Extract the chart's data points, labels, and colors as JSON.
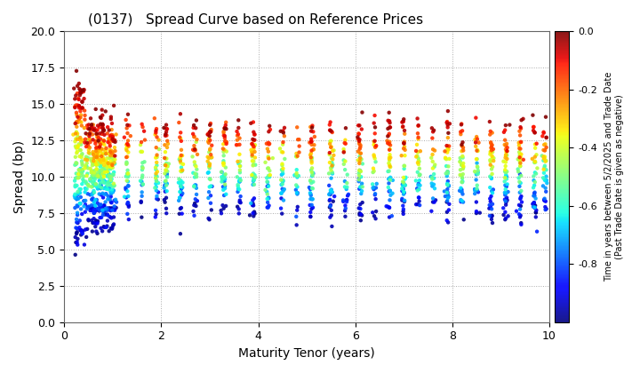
{
  "title": "(0137)   Spread Curve based on Reference Prices",
  "xlabel": "Maturity Tenor (years)",
  "ylabel": "Spread (bp)",
  "colorbar_label": "Time in years between 5/2/2025 and Trade Date\n(Past Trade Date is given as negative)",
  "xlim": [
    0,
    10
  ],
  "ylim": [
    0.0,
    20.0
  ],
  "yticks": [
    0.0,
    2.5,
    5.0,
    7.5,
    10.0,
    12.5,
    15.0,
    17.5,
    20.0
  ],
  "xticks": [
    0,
    2,
    4,
    6,
    8,
    10
  ],
  "cmap": "jet",
  "clim": [
    -1.0,
    0.0
  ],
  "cticks": [
    0.0,
    -0.2,
    -0.4,
    -0.6,
    -0.8
  ],
  "dot_size": 10,
  "background_color": "#ffffff",
  "grid_color": "#888888",
  "seed": 42,
  "figsize": [
    7.2,
    4.2
  ],
  "dpi": 100
}
